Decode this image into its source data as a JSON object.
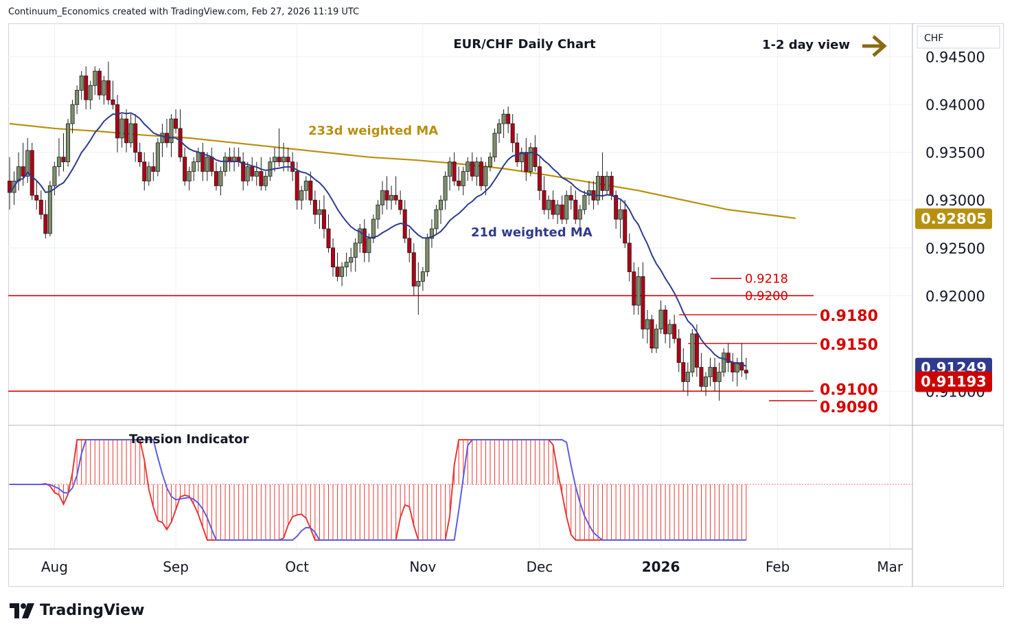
{
  "header": {
    "credit": "Continuum_Economics created with TradingView.com, Feb 27, 2026 11:19 UTC"
  },
  "brand": {
    "name": "TradingView",
    "icon": "tradingview-logo-icon"
  },
  "colors": {
    "up": "#7e8f6c",
    "down": "#b00016",
    "ma21": "#2e3a8c",
    "ma233": "#b8900f",
    "level": "#d50000",
    "tension_fast": "#e53935",
    "tension_slow": "#5c5ce0",
    "last_price_bg": "#cc0000",
    "ma21_bg": "#2e3a8c",
    "ma233_bg": "#b8900f"
  },
  "chart_data": {
    "type": "candlestick",
    "title": "EUR/CHF Daily Chart",
    "view_label": "1-2 day view",
    "view_icon": "arrow-right-icon",
    "currency_label": "CHF",
    "y_ticks": [
      "0.94500",
      "0.94000",
      "0.93500",
      "0.93000",
      "0.92500",
      "0.92000",
      "0.91000"
    ],
    "y_tick_values": [
      0.945,
      0.94,
      0.935,
      0.93,
      0.925,
      0.92,
      0.91
    ],
    "ylim": [
      0.9065,
      0.9485
    ],
    "x_ticks": [
      {
        "label": "Aug",
        "bar": 10,
        "bold": false
      },
      {
        "label": "Sep",
        "bar": 37,
        "bold": false
      },
      {
        "label": "Oct",
        "bar": 64,
        "bold": false
      },
      {
        "label": "Nov",
        "bar": 92,
        "bold": false
      },
      {
        "label": "Dec",
        "bar": 118,
        "bold": false
      },
      {
        "label": "2026",
        "bar": 145,
        "bold": true
      },
      {
        "label": "Feb",
        "bar": 171,
        "bold": false
      },
      {
        "label": "Mar",
        "bar": 196,
        "bold": false
      }
    ],
    "bar_count_span": 218,
    "ohlc": [
      [
        0.932,
        0.9345,
        0.929,
        0.9308
      ],
      [
        0.9308,
        0.933,
        0.9295,
        0.932
      ],
      [
        0.932,
        0.935,
        0.931,
        0.9335
      ],
      [
        0.9335,
        0.936,
        0.9315,
        0.9325
      ],
      [
        0.9325,
        0.9365,
        0.9318,
        0.9352
      ],
      [
        0.9352,
        0.936,
        0.93,
        0.9305
      ],
      [
        0.9305,
        0.932,
        0.929,
        0.93
      ],
      [
        0.93,
        0.931,
        0.928,
        0.9285
      ],
      [
        0.9285,
        0.93,
        0.926,
        0.9265
      ],
      [
        0.9265,
        0.932,
        0.9262,
        0.9315
      ],
      [
        0.9315,
        0.934,
        0.9305,
        0.9335
      ],
      [
        0.9335,
        0.9365,
        0.9325,
        0.9345
      ],
      [
        0.9345,
        0.937,
        0.933,
        0.934
      ],
      [
        0.934,
        0.9385,
        0.9335,
        0.938
      ],
      [
        0.938,
        0.9405,
        0.937,
        0.94
      ],
      [
        0.94,
        0.942,
        0.939,
        0.9415
      ],
      [
        0.9415,
        0.9435,
        0.9405,
        0.943
      ],
      [
        0.943,
        0.944,
        0.9395,
        0.9405
      ],
      [
        0.9405,
        0.9425,
        0.9395,
        0.942
      ],
      [
        0.942,
        0.944,
        0.941,
        0.9435
      ],
      [
        0.9435,
        0.9438,
        0.9405,
        0.941
      ],
      [
        0.941,
        0.943,
        0.94,
        0.9425
      ],
      [
        0.9425,
        0.9445,
        0.94,
        0.9405
      ],
      [
        0.9405,
        0.9425,
        0.9395,
        0.94
      ],
      [
        0.94,
        0.941,
        0.935,
        0.9365
      ],
      [
        0.9365,
        0.939,
        0.9355,
        0.9385
      ],
      [
        0.9385,
        0.9395,
        0.935,
        0.936
      ],
      [
        0.936,
        0.939,
        0.9355,
        0.938
      ],
      [
        0.938,
        0.939,
        0.934,
        0.935
      ],
      [
        0.935,
        0.936,
        0.9335,
        0.934
      ],
      [
        0.934,
        0.935,
        0.931,
        0.932
      ],
      [
        0.932,
        0.934,
        0.9315,
        0.9335
      ],
      [
        0.9335,
        0.935,
        0.932,
        0.933
      ],
      [
        0.933,
        0.9365,
        0.9325,
        0.936
      ],
      [
        0.936,
        0.938,
        0.9345,
        0.937
      ],
      [
        0.937,
        0.9385,
        0.9355,
        0.936
      ],
      [
        0.936,
        0.939,
        0.9345,
        0.9385
      ],
      [
        0.9385,
        0.9395,
        0.937,
        0.9375
      ],
      [
        0.9375,
        0.9395,
        0.934,
        0.9345
      ],
      [
        0.9345,
        0.9355,
        0.9315,
        0.932
      ],
      [
        0.932,
        0.9335,
        0.931,
        0.933
      ],
      [
        0.933,
        0.9345,
        0.932,
        0.934
      ],
      [
        0.934,
        0.9355,
        0.933,
        0.935
      ],
      [
        0.935,
        0.936,
        0.932,
        0.933
      ],
      [
        0.933,
        0.935,
        0.932,
        0.9345
      ],
      [
        0.9345,
        0.9355,
        0.9325,
        0.933
      ],
      [
        0.933,
        0.934,
        0.931,
        0.9315
      ],
      [
        0.9315,
        0.9335,
        0.9305,
        0.933
      ],
      [
        0.933,
        0.935,
        0.9325,
        0.9345
      ],
      [
        0.9345,
        0.9355,
        0.933,
        0.934
      ],
      [
        0.934,
        0.9355,
        0.933,
        0.9345
      ],
      [
        0.9345,
        0.9355,
        0.9335,
        0.934
      ],
      [
        0.934,
        0.935,
        0.931,
        0.932
      ],
      [
        0.932,
        0.934,
        0.9315,
        0.9335
      ],
      [
        0.9335,
        0.9345,
        0.932,
        0.9325
      ],
      [
        0.9325,
        0.934,
        0.9315,
        0.933
      ],
      [
        0.933,
        0.9345,
        0.931,
        0.9315
      ],
      [
        0.9315,
        0.933,
        0.931,
        0.9325
      ],
      [
        0.9325,
        0.9345,
        0.932,
        0.934
      ],
      [
        0.934,
        0.9355,
        0.933,
        0.9345
      ],
      [
        0.9345,
        0.9375,
        0.9335,
        0.934
      ],
      [
        0.934,
        0.936,
        0.933,
        0.9345
      ],
      [
        0.9345,
        0.9355,
        0.933,
        0.934
      ],
      [
        0.934,
        0.935,
        0.932,
        0.933
      ],
      [
        0.933,
        0.934,
        0.929,
        0.93
      ],
      [
        0.93,
        0.9315,
        0.929,
        0.931
      ],
      [
        0.931,
        0.9325,
        0.93,
        0.932
      ],
      [
        0.932,
        0.933,
        0.9295,
        0.93
      ],
      [
        0.93,
        0.931,
        0.9275,
        0.9285
      ],
      [
        0.9285,
        0.93,
        0.927,
        0.929
      ],
      [
        0.929,
        0.9305,
        0.926,
        0.927
      ],
      [
        0.927,
        0.9285,
        0.9245,
        0.925
      ],
      [
        0.925,
        0.926,
        0.922,
        0.923
      ],
      [
        0.923,
        0.9245,
        0.9215,
        0.922
      ],
      [
        0.922,
        0.9235,
        0.921,
        0.923
      ],
      [
        0.923,
        0.9245,
        0.922,
        0.9235
      ],
      [
        0.9235,
        0.925,
        0.9225,
        0.924
      ],
      [
        0.924,
        0.926,
        0.9225,
        0.9255
      ],
      [
        0.9255,
        0.9275,
        0.9245,
        0.927
      ],
      [
        0.927,
        0.928,
        0.9235,
        0.9245
      ],
      [
        0.9245,
        0.9265,
        0.9235,
        0.926
      ],
      [
        0.926,
        0.9285,
        0.9255,
        0.928
      ],
      [
        0.928,
        0.93,
        0.927,
        0.9295
      ],
      [
        0.9295,
        0.932,
        0.9285,
        0.931
      ],
      [
        0.931,
        0.9325,
        0.929,
        0.93
      ],
      [
        0.93,
        0.9315,
        0.929,
        0.9305
      ],
      [
        0.9305,
        0.9325,
        0.9295,
        0.93
      ],
      [
        0.93,
        0.931,
        0.9285,
        0.929
      ],
      [
        0.929,
        0.93,
        0.9255,
        0.926
      ],
      [
        0.926,
        0.927,
        0.9235,
        0.9245
      ],
      [
        0.9245,
        0.9255,
        0.92,
        0.921
      ],
      [
        0.921,
        0.9235,
        0.918,
        0.9215
      ],
      [
        0.9215,
        0.923,
        0.9205,
        0.9225
      ],
      [
        0.9225,
        0.9265,
        0.922,
        0.926
      ],
      [
        0.926,
        0.928,
        0.925,
        0.927
      ],
      [
        0.927,
        0.9295,
        0.9265,
        0.929
      ],
      [
        0.929,
        0.9305,
        0.9275,
        0.93
      ],
      [
        0.93,
        0.933,
        0.929,
        0.9325
      ],
      [
        0.9325,
        0.9345,
        0.931,
        0.934
      ],
      [
        0.934,
        0.935,
        0.9315,
        0.932
      ],
      [
        0.932,
        0.9335,
        0.931,
        0.9315
      ],
      [
        0.9315,
        0.9335,
        0.9305,
        0.933
      ],
      [
        0.933,
        0.9345,
        0.932,
        0.934
      ],
      [
        0.934,
        0.935,
        0.932,
        0.9325
      ],
      [
        0.9325,
        0.9345,
        0.9315,
        0.934
      ],
      [
        0.934,
        0.9345,
        0.931,
        0.9315
      ],
      [
        0.9315,
        0.934,
        0.9305,
        0.9335
      ],
      [
        0.9335,
        0.935,
        0.933,
        0.9345
      ],
      [
        0.9345,
        0.9375,
        0.934,
        0.937
      ],
      [
        0.937,
        0.9385,
        0.936,
        0.938
      ],
      [
        0.938,
        0.9395,
        0.9365,
        0.939
      ],
      [
        0.939,
        0.9398,
        0.937,
        0.938
      ],
      [
        0.938,
        0.939,
        0.935,
        0.936
      ],
      [
        0.936,
        0.937,
        0.9335,
        0.934
      ],
      [
        0.934,
        0.9355,
        0.933,
        0.935
      ],
      [
        0.935,
        0.9365,
        0.932,
        0.933
      ],
      [
        0.933,
        0.936,
        0.9325,
        0.9355
      ],
      [
        0.9355,
        0.9368,
        0.933,
        0.9335
      ],
      [
        0.9335,
        0.9345,
        0.93,
        0.931
      ],
      [
        0.931,
        0.9325,
        0.9285,
        0.929
      ],
      [
        0.929,
        0.9305,
        0.928,
        0.93
      ],
      [
        0.93,
        0.931,
        0.928,
        0.9285
      ],
      [
        0.9285,
        0.93,
        0.9275,
        0.9295
      ],
      [
        0.9295,
        0.9305,
        0.9275,
        0.928
      ],
      [
        0.928,
        0.931,
        0.9275,
        0.9305
      ],
      [
        0.9305,
        0.9315,
        0.929,
        0.93
      ],
      [
        0.93,
        0.931,
        0.9275,
        0.928
      ],
      [
        0.928,
        0.9295,
        0.927,
        0.929
      ],
      [
        0.929,
        0.931,
        0.9285,
        0.9305
      ],
      [
        0.9305,
        0.932,
        0.9295,
        0.931
      ],
      [
        0.931,
        0.932,
        0.929,
        0.93
      ],
      [
        0.93,
        0.933,
        0.9295,
        0.9325
      ],
      [
        0.9325,
        0.935,
        0.93,
        0.931
      ],
      [
        0.931,
        0.933,
        0.9305,
        0.9325
      ],
      [
        0.9325,
        0.933,
        0.93,
        0.9305
      ],
      [
        0.9305,
        0.931,
        0.927,
        0.928
      ],
      [
        0.928,
        0.93,
        0.926,
        0.929
      ],
      [
        0.929,
        0.93,
        0.925,
        0.9255
      ],
      [
        0.9255,
        0.9265,
        0.9215,
        0.9225
      ],
      [
        0.9225,
        0.9235,
        0.918,
        0.919
      ],
      [
        0.919,
        0.923,
        0.918,
        0.922
      ],
      [
        0.922,
        0.9235,
        0.9155,
        0.9165
      ],
      [
        0.9165,
        0.9185,
        0.915,
        0.9175
      ],
      [
        0.9175,
        0.918,
        0.914,
        0.9145
      ],
      [
        0.9145,
        0.917,
        0.914,
        0.9165
      ],
      [
        0.9165,
        0.9195,
        0.916,
        0.9185
      ],
      [
        0.9185,
        0.919,
        0.915,
        0.916
      ],
      [
        0.916,
        0.9175,
        0.9145,
        0.917
      ],
      [
        0.917,
        0.918,
        0.915,
        0.9155
      ],
      [
        0.9155,
        0.9165,
        0.912,
        0.913
      ],
      [
        0.913,
        0.9145,
        0.91,
        0.911
      ],
      [
        0.911,
        0.913,
        0.9095,
        0.912
      ],
      [
        0.912,
        0.9165,
        0.9115,
        0.916
      ],
      [
        0.916,
        0.917,
        0.9115,
        0.9125
      ],
      [
        0.9125,
        0.914,
        0.91,
        0.9105
      ],
      [
        0.9105,
        0.912,
        0.9095,
        0.9115
      ],
      [
        0.9115,
        0.9135,
        0.9105,
        0.9125
      ],
      [
        0.9125,
        0.9135,
        0.91,
        0.911
      ],
      [
        0.911,
        0.913,
        0.909,
        0.912
      ],
      [
        0.912,
        0.9145,
        0.9115,
        0.914
      ],
      [
        0.914,
        0.915,
        0.912,
        0.913
      ],
      [
        0.913,
        0.914,
        0.911,
        0.912
      ],
      [
        0.912,
        0.9135,
        0.9105,
        0.913
      ],
      [
        0.913,
        0.915,
        0.9115,
        0.9122
      ],
      [
        0.9122,
        0.9135,
        0.9112,
        0.9119
      ]
    ],
    "x_positions": [
      0,
      1,
      2,
      3,
      4,
      5,
      6,
      7,
      8,
      9,
      10,
      11,
      12,
      13,
      14,
      15,
      16,
      17,
      18,
      19,
      20,
      21,
      22,
      23,
      24,
      25,
      26,
      27,
      28,
      29,
      30,
      31,
      32,
      33,
      34,
      35,
      36,
      37,
      38,
      39,
      40,
      41,
      42,
      43,
      44,
      45,
      46,
      47,
      48,
      49,
      50,
      51,
      52,
      53,
      54,
      55,
      56,
      57,
      58,
      59,
      60,
      61,
      62,
      63,
      64,
      65,
      66,
      67,
      68,
      69,
      70,
      71,
      72,
      73,
      74,
      75,
      76,
      77,
      78,
      79,
      80,
      81,
      82,
      83,
      84,
      85,
      86,
      87,
      88,
      89,
      90,
      91,
      92,
      93,
      94,
      95,
      96,
      97,
      98,
      99,
      100,
      101,
      102,
      103,
      104,
      105,
      106,
      107,
      108,
      109,
      110,
      111,
      112,
      113,
      114,
      115,
      116,
      117,
      118,
      119,
      120,
      121,
      122,
      123,
      124,
      125,
      126,
      127,
      128,
      129,
      130,
      131,
      132,
      133,
      134,
      135,
      136,
      137,
      138,
      139,
      140,
      141,
      142,
      143,
      144,
      145,
      146,
      147,
      148,
      149,
      150,
      151,
      152,
      153,
      154,
      155,
      156,
      157,
      158,
      159,
      160,
      161,
      162,
      163,
      164,
      165,
      166,
      167,
      168,
      169,
      170,
      171,
      172,
      173,
      174,
      175,
      176,
      177,
      178,
      179
    ],
    "ma233": [
      0.938,
      0.9375,
      0.9372,
      0.9368,
      0.9365,
      0.936,
      0.9355,
      0.935,
      0.9345,
      0.9342,
      0.9338,
      0.9333,
      0.9326,
      0.9318,
      0.931,
      0.93,
      0.929,
      0.9281
    ],
    "ma233_x": [
      0,
      10,
      20,
      30,
      40,
      50,
      60,
      70,
      80,
      90,
      100,
      110,
      120,
      130,
      140,
      150,
      160,
      175
    ],
    "ma233_label": "233d weighted MA",
    "ma21_label": "21d weighted MA",
    "levels": [
      {
        "label": "0.9218",
        "value": 0.9218,
        "from_bar": 157,
        "big": false
      },
      {
        "label": "0.9200",
        "value": 0.92,
        "from_bar": 0,
        "big": false
      },
      {
        "label": "0.9180",
        "value": 0.918,
        "from_bar": 150,
        "big": true
      },
      {
        "label": "0.9150",
        "value": 0.915,
        "from_bar": 152,
        "big": true
      },
      {
        "label": "0.9100",
        "value": 0.91,
        "from_bar": 0,
        "big": true
      },
      {
        "label": "0.9090",
        "value": 0.909,
        "from_bar": 170,
        "big": true
      }
    ],
    "price_tags": [
      {
        "label": "0.92805",
        "value": 0.92805,
        "color_key": "ma233_bg"
      },
      {
        "label": "0.91249",
        "value": 0.91249,
        "color_key": "ma21_bg"
      },
      {
        "label": "0.91193",
        "value": 0.91193,
        "color_key": "last_price_bg"
      }
    ],
    "tension": {
      "label": "Tension Indicator",
      "ylim": [
        -1.0,
        1.0
      ]
    }
  }
}
